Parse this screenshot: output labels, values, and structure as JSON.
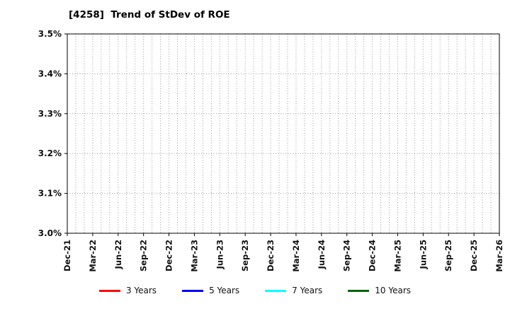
{
  "chart_data": {
    "type": "line",
    "title": "[4258]  Trend of StDev of ROE",
    "xlabel": "",
    "ylabel": "",
    "ylim": [
      3.0,
      3.5
    ],
    "y_tick_labels": [
      "3.0%",
      "3.1%",
      "3.2%",
      "3.3%",
      "3.4%",
      "3.5%"
    ],
    "x_tick_labels": [
      "Dec-21",
      "Mar-22",
      "Jun-22",
      "Sep-22",
      "Dec-22",
      "Mar-23",
      "Jun-23",
      "Sep-23",
      "Dec-23",
      "Mar-24",
      "Jun-24",
      "Sep-24",
      "Dec-24",
      "Mar-25",
      "Jun-25",
      "Sep-25",
      "Dec-25",
      "Mar-26"
    ],
    "months_per_x_tick": 3,
    "grid": true,
    "grid_style": "dotted",
    "legend_position": "bottom",
    "series": [
      {
        "name": "3 Years",
        "color": "#ff0000",
        "values": []
      },
      {
        "name": "5 Years",
        "color": "#0000ff",
        "values": []
      },
      {
        "name": "7 Years",
        "color": "#00ffff",
        "values": []
      },
      {
        "name": "10 Years",
        "color": "#006400",
        "values": []
      }
    ]
  }
}
